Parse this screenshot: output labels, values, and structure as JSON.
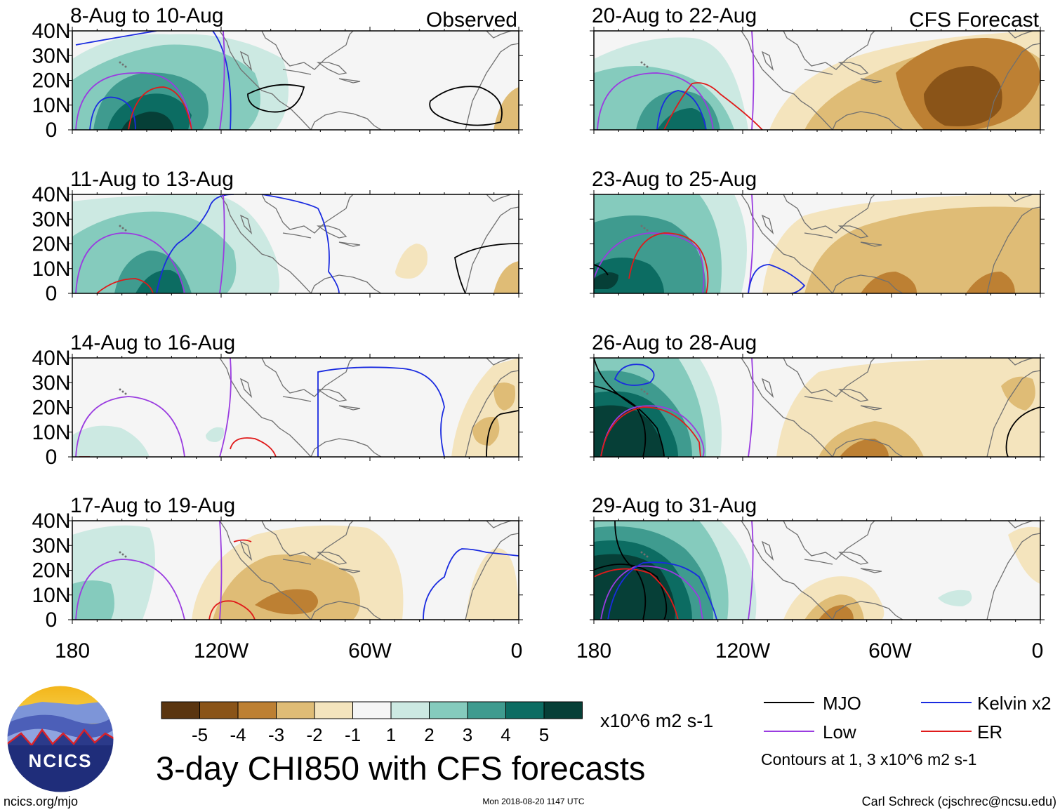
{
  "colors": {
    "palette": [
      "#5a3510",
      "#8a5418",
      "#bd8033",
      "#dfbc76",
      "#f4e4bd",
      "#f5f5f5",
      "#cce9e2",
      "#85cbbd",
      "#3f9b8f",
      "#0c6c62",
      "#063f37"
    ],
    "mjo": "#000000",
    "kelvin": "#1a2be0",
    "low": "#9a3ce0",
    "er": "#e01a1a",
    "land_outline": "#707070"
  },
  "panels": [
    {
      "title": "8-Aug to 10-Aug",
      "tag": "Observed"
    },
    {
      "title": "20-Aug to 22-Aug",
      "tag": "CFS Forecast"
    },
    {
      "title": "11-Aug to 13-Aug",
      "tag": ""
    },
    {
      "title": "23-Aug to 25-Aug",
      "tag": ""
    },
    {
      "title": "14-Aug to 16-Aug",
      "tag": ""
    },
    {
      "title": "26-Aug to 28-Aug",
      "tag": ""
    },
    {
      "title": "17-Aug to 19-Aug",
      "tag": ""
    },
    {
      "title": "29-Aug to 31-Aug",
      "tag": ""
    }
  ],
  "chart_data": {
    "type": "heatmap",
    "title": "3-day CHI850 with CFS forecasts",
    "units": "x10^6 m2 s-1",
    "lat_ticks": [
      "40N",
      "30N",
      "20N",
      "10N",
      "0"
    ],
    "lon_ticks": [
      "180",
      "120W",
      "60W",
      "0"
    ],
    "colorbar_levels": [
      "-5",
      "-4",
      "-3",
      "-2",
      "-1",
      "1",
      "2",
      "3",
      "4",
      "5"
    ],
    "legend": [
      {
        "label": "MJO",
        "color": "#000000"
      },
      {
        "label": "Kelvin x2",
        "color": "#1a2be0"
      },
      {
        "label": "Low",
        "color": "#9a3ce0"
      },
      {
        "label": "ER",
        "color": "#e01a1a"
      }
    ],
    "contour_note": "Contours at 1, 3 x10^6 m2 s-1"
  },
  "logo": {
    "text": "NCICS"
  },
  "footer": {
    "left": "ncics.org/mjo",
    "center": "Mon 2018-08-20 1147 UTC",
    "right": "Carl Schreck (cjschrec@ncsu.edu)"
  }
}
